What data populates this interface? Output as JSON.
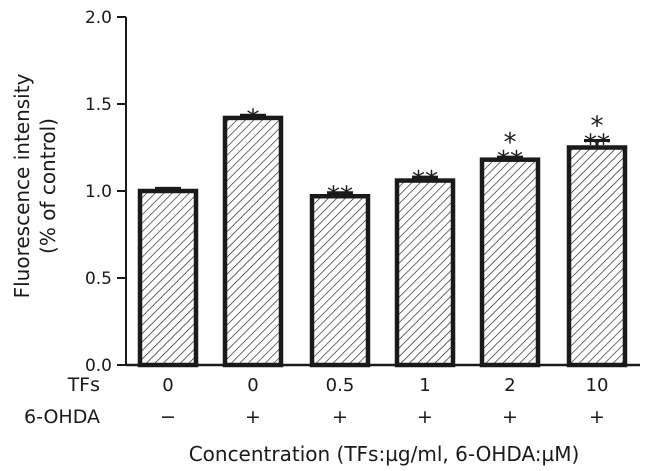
{
  "chart_data": {
    "type": "bar",
    "title": "",
    "xlabel": "Concentration (TFs:µg/ml, 6-OHDA:µM)",
    "ylabel_line1": "Fluorescence intensity",
    "ylabel_line2": "(% of control)",
    "ylim": [
      0,
      2.0
    ],
    "yticks": [
      "0.0",
      "0.5",
      "1.0",
      "1.5",
      "2.0"
    ],
    "ytick_values": [
      0,
      0.5,
      1.0,
      1.5,
      2.0
    ],
    "row_labels": [
      "TFs",
      "6-OHDA"
    ],
    "categories": [
      {
        "tfs": "0",
        "ohda": "−"
      },
      {
        "tfs": "0",
        "ohda": "+"
      },
      {
        "tfs": "0.5",
        "ohda": "+"
      },
      {
        "tfs": "1",
        "ohda": "+"
      },
      {
        "tfs": "2",
        "ohda": "+"
      },
      {
        "tfs": "10",
        "ohda": "+"
      }
    ],
    "values": [
      1.0,
      1.42,
      0.97,
      1.06,
      1.18,
      1.25
    ],
    "errors": [
      0.015,
      0.015,
      0.02,
      0.02,
      0.015,
      0.04
    ],
    "significance": [
      [],
      [
        "*"
      ],
      [
        "**"
      ],
      [
        "**"
      ],
      [
        "**",
        "*"
      ],
      [
        "**",
        "*"
      ]
    ],
    "bar_fill": "hatched",
    "bar_color": "#1a1a1a",
    "grid": false
  }
}
